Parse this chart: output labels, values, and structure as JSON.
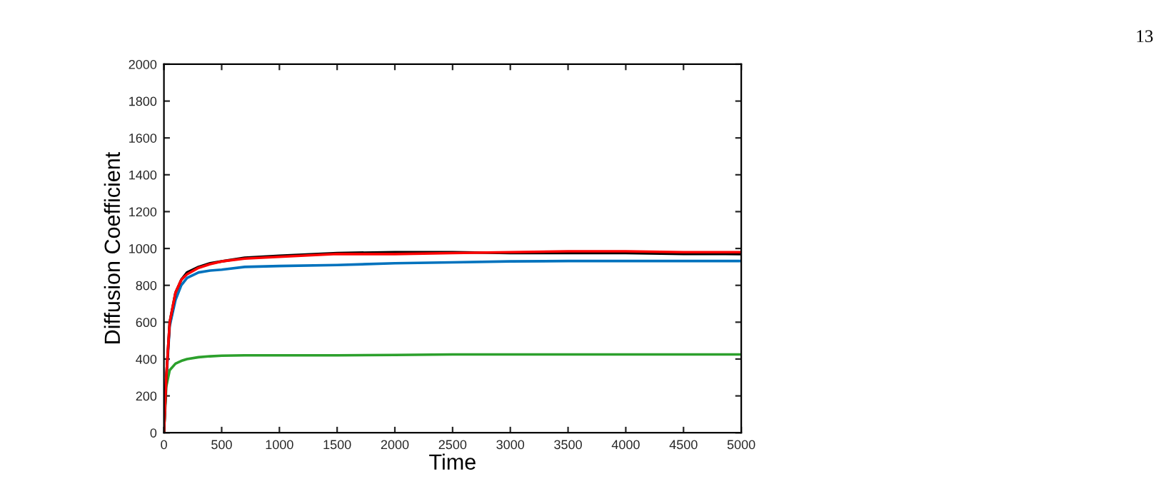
{
  "chart_data": {
    "type": "line",
    "xlabel": "Time",
    "ylabel": "Diffusion Coefficient",
    "annotations": [
      "13"
    ],
    "x": [
      0,
      20,
      50,
      100,
      150,
      200,
      300,
      400,
      500,
      700,
      1000,
      1500,
      2000,
      2500,
      3000,
      3500,
      4000,
      4500,
      5000
    ],
    "series": [
      {
        "color": "#0072bd",
        "values": [
          0,
          280,
          580,
          720,
          800,
          840,
          870,
          880,
          885,
          900,
          905,
          910,
          920,
          925,
          930,
          932,
          932,
          932,
          932
        ]
      },
      {
        "color": "#2ca02c",
        "values": [
          0,
          250,
          340,
          375,
          390,
          400,
          410,
          415,
          418,
          420,
          420,
          420,
          422,
          425,
          425,
          425,
          425,
          425,
          425
        ]
      },
      {
        "color": "#000000",
        "values": [
          0,
          300,
          600,
          760,
          830,
          870,
          900,
          920,
          930,
          950,
          960,
          975,
          980,
          980,
          975,
          975,
          975,
          970,
          970
        ]
      },
      {
        "color": "#ff0000",
        "values": [
          0,
          300,
          600,
          760,
          830,
          860,
          895,
          915,
          930,
          945,
          955,
          970,
          970,
          975,
          980,
          985,
          985,
          980,
          980
        ]
      }
    ],
    "xlim": [
      0,
      5000
    ],
    "ylim": [
      0,
      2000
    ],
    "xticks": [
      0,
      500,
      1000,
      1500,
      2000,
      2500,
      3000,
      3500,
      4000,
      4500,
      5000
    ],
    "yticks": [
      0,
      200,
      400,
      600,
      800,
      1000,
      1200,
      1400,
      1600,
      1800,
      2000
    ],
    "grid": false,
    "marker": "none",
    "line_style": "solid"
  }
}
